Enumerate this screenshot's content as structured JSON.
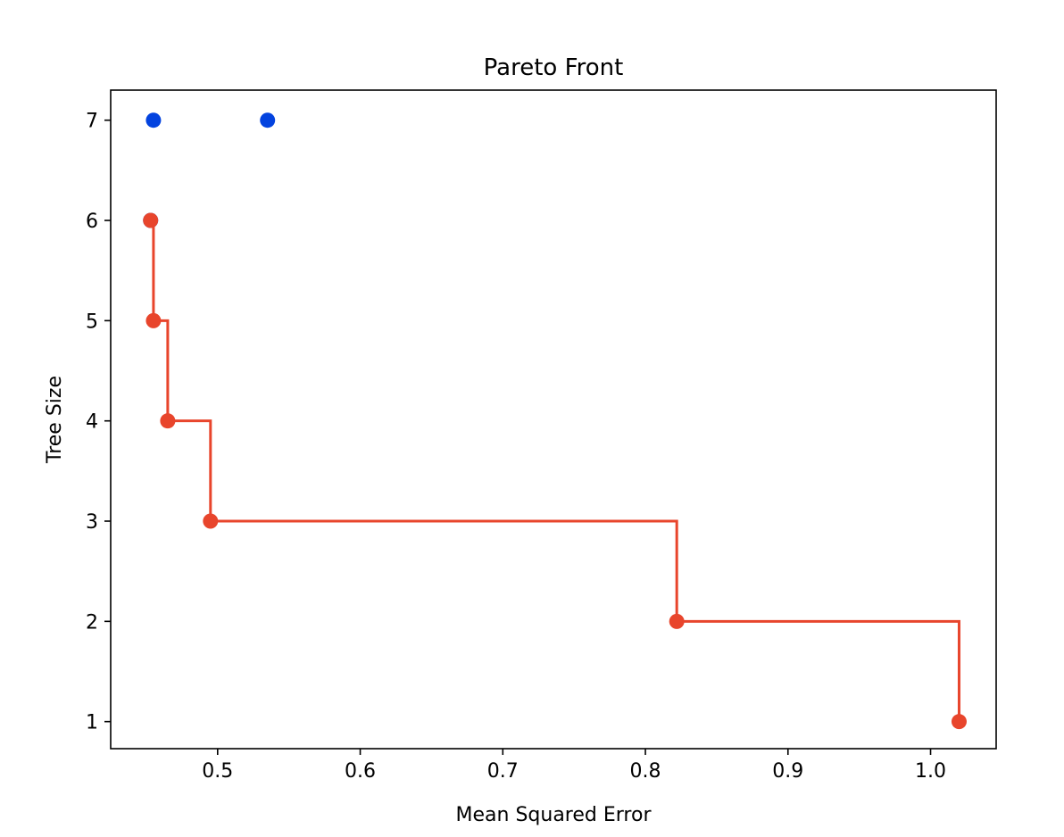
{
  "chart_data": {
    "type": "scatter",
    "title": "Pareto Front",
    "xlabel": "Mean Squared Error",
    "ylabel": "Tree Size",
    "xlim": [
      0.425,
      1.046
    ],
    "ylim": [
      0.73,
      7.3
    ],
    "xticks": [
      0.5,
      0.6,
      0.7,
      0.8,
      0.9,
      1.0
    ],
    "xtick_labels": [
      "0.5",
      "0.6",
      "0.7",
      "0.8",
      "0.9",
      "1.0"
    ],
    "yticks": [
      1,
      2,
      3,
      4,
      5,
      6,
      7
    ],
    "ytick_labels": [
      "1",
      "2",
      "3",
      "4",
      "5",
      "6",
      "7"
    ],
    "grid": false,
    "colors": {
      "all_points": "#0343df",
      "pareto": "#e8452c"
    },
    "series": [
      {
        "kind": "scatter",
        "points": [
          {
            "x": 0.455,
            "y": 7
          },
          {
            "x": 0.535,
            "y": 7
          },
          {
            "x": 0.453,
            "y": 6
          }
        ]
      },
      {
        "kind": "step-line",
        "points": [
          {
            "x": 0.453,
            "y": 6
          },
          {
            "x": 0.455,
            "y": 5
          },
          {
            "x": 0.465,
            "y": 4
          },
          {
            "x": 0.495,
            "y": 3
          },
          {
            "x": 0.822,
            "y": 2
          },
          {
            "x": 1.02,
            "y": 1
          }
        ]
      }
    ]
  }
}
